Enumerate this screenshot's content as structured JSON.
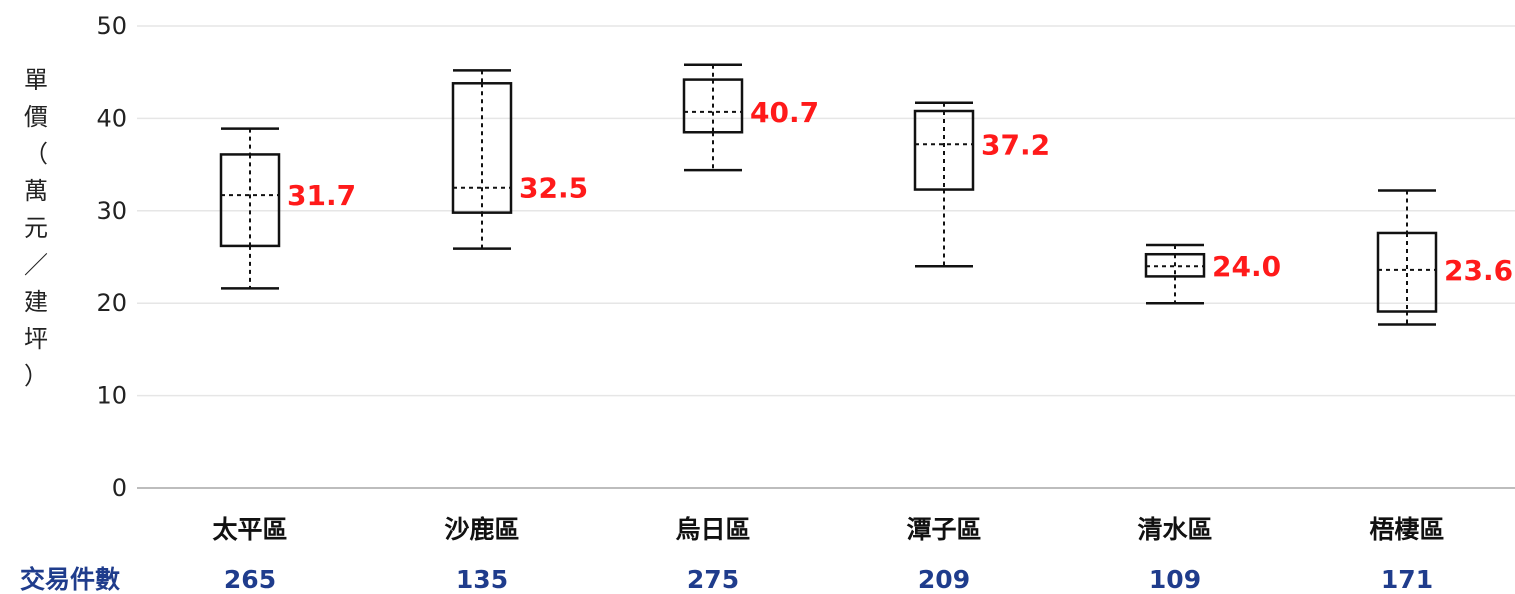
{
  "chart_data": {
    "type": "box",
    "ylabel_chars": [
      "單",
      "價",
      "（",
      "萬",
      "元",
      "／",
      "建",
      "坪",
      "）"
    ],
    "ylim": [
      0,
      50
    ],
    "yticks": [
      0,
      10,
      20,
      30,
      40,
      50
    ],
    "grid": true,
    "count_label": "交易件數",
    "categories": [
      "太平區",
      "沙鹿區",
      "烏日區",
      "潭子區",
      "清水區",
      "梧棲區"
    ],
    "counts": [
      "265",
      "135",
      "275",
      "209",
      "109",
      "171"
    ],
    "boxes": [
      {
        "min": 21.6,
        "q1": 26.2,
        "median": 31.7,
        "q3": 36.1,
        "max": 38.9,
        "median_label": "31.7"
      },
      {
        "min": 25.9,
        "q1": 29.8,
        "median": 32.5,
        "q3": 43.8,
        "max": 45.2,
        "median_label": "32.5"
      },
      {
        "min": 34.4,
        "q1": 38.5,
        "median": 40.7,
        "q3": 44.2,
        "max": 45.8,
        "median_label": "40.7"
      },
      {
        "min": 24.0,
        "q1": 32.3,
        "median": 37.2,
        "q3": 40.8,
        "max": 41.7,
        "median_label": "37.2"
      },
      {
        "min": 20.0,
        "q1": 22.9,
        "median": 24.0,
        "q3": 25.3,
        "max": 26.3,
        "median_label": "24.0"
      },
      {
        "min": 17.7,
        "q1": 19.1,
        "median": 23.6,
        "q3": 27.6,
        "max": 32.2,
        "median_label": "23.6"
      }
    ],
    "colors": {
      "median_label": "#ff1a1a",
      "count": "#1f3c8c",
      "grid": "#e6e6e6",
      "box": "#111111"
    }
  }
}
